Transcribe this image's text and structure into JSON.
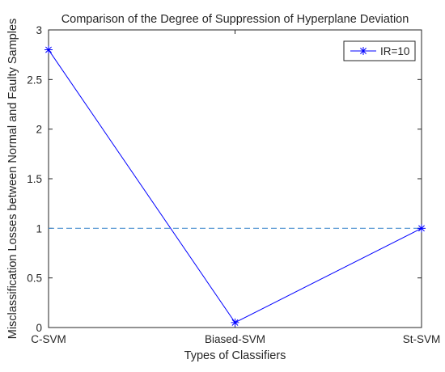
{
  "chart_data": {
    "type": "line",
    "title": "Comparison of the Degree of Suppression of Hyperplane Deviation",
    "xlabel": "Types of Classifiers",
    "ylabel": "Misclassification Losses between Normal and Faulty Samples",
    "categories": [
      "C-SVM",
      "Biased-SVM",
      "St-SVM"
    ],
    "series": [
      {
        "name": "IR=10",
        "values": [
          2.8,
          0.05,
          1.0
        ],
        "color": "#0000ff",
        "marker": "asterisk"
      }
    ],
    "reference_line": {
      "y": 1.0,
      "style": "dashed",
      "color": "#4a90d0"
    },
    "ylim": [
      0,
      3
    ],
    "yticks": [
      "0",
      "0.5",
      "1",
      "1.5",
      "2",
      "2.5",
      "3"
    ],
    "ytick_values": [
      0,
      0.5,
      1,
      1.5,
      2,
      2.5,
      3
    ],
    "grid": false,
    "legend_position": "top-right"
  }
}
